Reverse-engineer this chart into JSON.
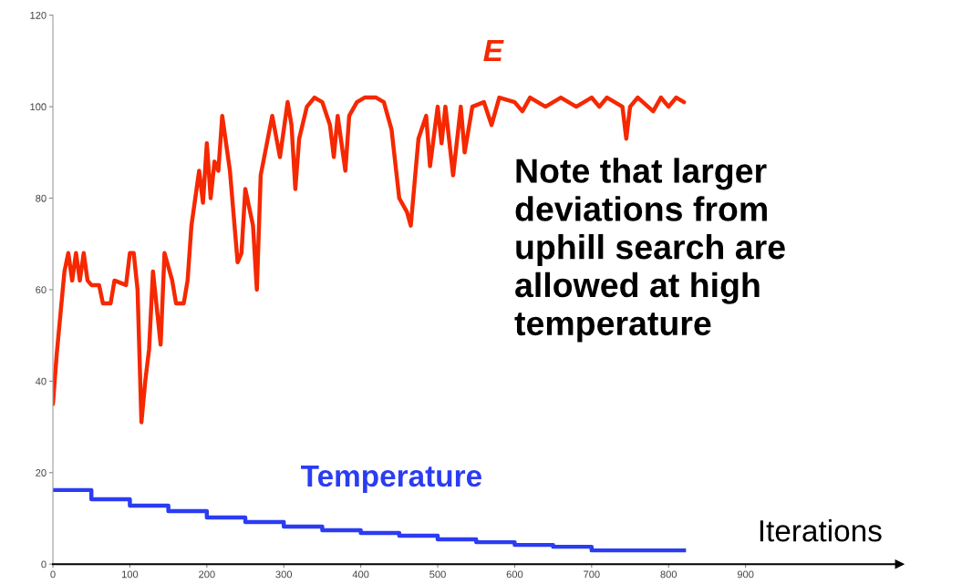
{
  "chart_data": {
    "type": "line",
    "xlabel": "Iterations",
    "xlim": [
      0,
      1100
    ],
    "xticks": [
      0,
      100,
      200,
      300,
      400,
      500,
      600,
      700,
      800,
      900
    ],
    "ylim": [
      0,
      120
    ],
    "yticks": [
      0,
      20,
      40,
      60,
      80,
      100,
      120
    ],
    "grid": false,
    "legend": false,
    "marker": "none",
    "line_style": "solid",
    "series": [
      {
        "name": "E",
        "color": "#f52800",
        "x": [
          0,
          5,
          10,
          15,
          20,
          25,
          30,
          35,
          40,
          45,
          50,
          60,
          65,
          75,
          80,
          95,
          100,
          105,
          110,
          115,
          120,
          125,
          130,
          140,
          145,
          155,
          160,
          170,
          175,
          180,
          190,
          195,
          200,
          205,
          210,
          215,
          220,
          230,
          240,
          245,
          250,
          260,
          265,
          270,
          285,
          295,
          305,
          310,
          315,
          320,
          330,
          340,
          350,
          360,
          365,
          370,
          380,
          385,
          395,
          405,
          420,
          430,
          440,
          450,
          460,
          465,
          475,
          485,
          490,
          500,
          505,
          510,
          520,
          530,
          535,
          545,
          560,
          570,
          580,
          600,
          610,
          620,
          640,
          660,
          680,
          700,
          710,
          720,
          740,
          745,
          750,
          760,
          780,
          790,
          800,
          810,
          820
        ],
        "values": [
          35,
          46,
          55,
          64,
          68,
          62,
          68,
          62,
          68,
          62,
          61,
          61,
          57,
          57,
          62,
          61,
          68,
          68,
          60,
          31,
          40,
          47,
          64,
          48,
          68,
          62,
          57,
          57,
          62,
          74,
          86,
          79,
          92,
          80,
          88,
          86,
          98,
          86,
          66,
          68,
          82,
          74,
          60,
          85,
          98,
          89,
          101,
          96,
          82,
          93,
          100,
          102,
          101,
          96,
          89,
          98,
          86,
          98,
          101,
          102,
          102,
          101,
          95,
          80,
          77,
          74,
          93,
          98,
          87,
          100,
          92,
          100,
          85,
          100,
          90,
          100,
          101,
          96,
          102,
          101,
          99,
          102,
          100,
          102,
          100,
          102,
          100,
          102,
          100,
          93,
          100,
          102,
          99,
          102,
          100,
          102,
          101
        ]
      },
      {
        "name": "Temperature",
        "color": "#2b3cf2",
        "type": "step",
        "x": [
          0,
          50,
          100,
          150,
          200,
          250,
          300,
          350,
          400,
          450,
          500,
          550,
          600,
          650,
          700,
          750,
          820
        ],
        "values": [
          16.2,
          14.2,
          12.8,
          11.6,
          10.2,
          9.2,
          8.2,
          7.4,
          6.8,
          6.2,
          5.4,
          4.8,
          4.2,
          3.8,
          3.0,
          3.0,
          3.0
        ]
      }
    ],
    "annotations": [
      "Note that larger\ndeviations from\nuphill search are\nallowed at high\ntemperature"
    ]
  }
}
